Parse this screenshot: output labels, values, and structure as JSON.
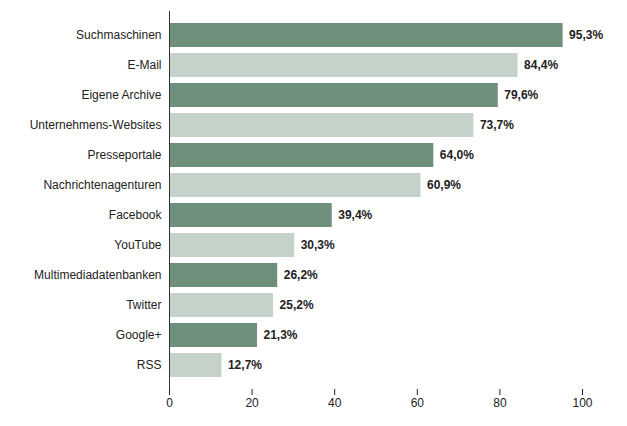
{
  "chart_data": {
    "type": "bar",
    "orientation": "horizontal",
    "categories": [
      "Suchmaschinen",
      "E-Mail",
      "Eigene Archive",
      "Unternehmens-Websites",
      "Presseportale",
      "Nachrichtenagenturen",
      "Facebook",
      "YouTube",
      "Multimediadatenbanken",
      "Twitter",
      "Google+",
      "RSS"
    ],
    "values": [
      95.3,
      84.4,
      79.6,
      73.7,
      64.0,
      60.9,
      39.4,
      30.3,
      26.2,
      25.2,
      21.3,
      12.7
    ],
    "value_labels": [
      "95,3%",
      "84,4%",
      "79,6%",
      "73,7%",
      "64,0%",
      "60,9%",
      "39,4%",
      "30,3%",
      "26,2%",
      "25,2%",
      "21,3%",
      "12,7%"
    ],
    "colors": [
      "#6f8f7d",
      "#c4d2c9",
      "#6f8f7d",
      "#c4d2c9",
      "#6f8f7d",
      "#c4d2c9",
      "#6f8f7d",
      "#c4d2c9",
      "#6f8f7d",
      "#c4d2c9",
      "#6f8f7d",
      "#c4d2c9"
    ],
    "xlim": [
      0,
      100
    ],
    "xticks": [
      0,
      20,
      40,
      60,
      80,
      100
    ],
    "data_labels": true,
    "grid": false
  }
}
